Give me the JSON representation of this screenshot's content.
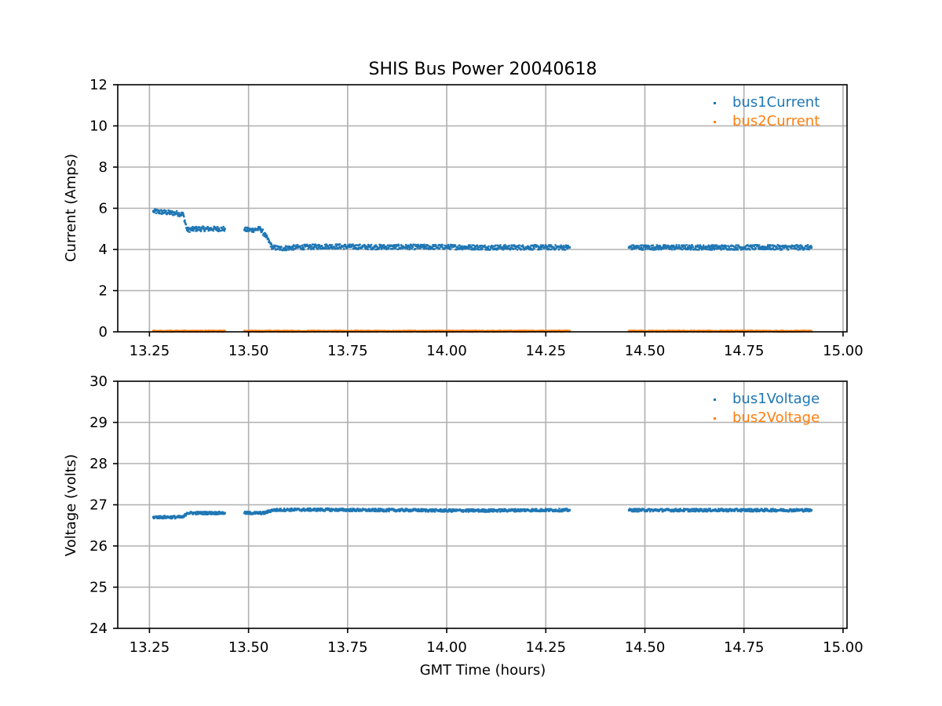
{
  "chart_data": [
    {
      "type": "scatter",
      "title": "SHIS Bus Power 20040618",
      "xlabel": "",
      "ylabel": "Current (Amps)",
      "xlim": [
        13.17,
        15.01
      ],
      "ylim": [
        0,
        12
      ],
      "x_ticks": [
        "13.25",
        "13.50",
        "13.75",
        "14.00",
        "14.25",
        "14.50",
        "14.75",
        "15.00"
      ],
      "y_ticks": [
        "0",
        "2",
        "4",
        "6",
        "8",
        "10",
        "12"
      ],
      "grid": true,
      "legend_position": "top-right",
      "gap_hours": [
        13.44,
        13.49,
        14.31,
        14.46
      ],
      "series": [
        {
          "name": "bus1Current",
          "color": "#1f77b4",
          "points": [
            [
              13.26,
              5.85
            ],
            [
              13.29,
              5.8
            ],
            [
              13.32,
              5.75
            ],
            [
              13.335,
              5.7
            ],
            [
              13.345,
              4.95
            ],
            [
              13.37,
              5.0
            ],
            [
              13.4,
              5.0
            ],
            [
              13.44,
              5.0
            ],
            [
              13.49,
              4.95
            ],
            [
              13.51,
              4.95
            ],
            [
              13.53,
              5.0
            ],
            [
              13.545,
              4.6
            ],
            [
              13.56,
              4.1
            ],
            [
              13.58,
              4.05
            ],
            [
              13.62,
              4.1
            ],
            [
              13.7,
              4.15
            ],
            [
              13.8,
              4.12
            ],
            [
              13.9,
              4.12
            ],
            [
              14.0,
              4.12
            ],
            [
              14.1,
              4.1
            ],
            [
              14.2,
              4.1
            ],
            [
              14.31,
              4.1
            ],
            [
              14.46,
              4.1
            ],
            [
              14.55,
              4.1
            ],
            [
              14.65,
              4.1
            ],
            [
              14.75,
              4.1
            ],
            [
              14.85,
              4.1
            ],
            [
              14.92,
              4.1
            ]
          ]
        },
        {
          "name": "bus2Current",
          "color": "#ff7f0e",
          "points": [
            [
              13.26,
              0.03
            ],
            [
              13.35,
              0.03
            ],
            [
              13.44,
              0.03
            ],
            [
              13.49,
              0.03
            ],
            [
              13.7,
              0.03
            ],
            [
              14.0,
              0.03
            ],
            [
              14.31,
              0.03
            ],
            [
              14.46,
              0.03
            ],
            [
              14.7,
              0.03
            ],
            [
              14.92,
              0.03
            ]
          ]
        }
      ]
    },
    {
      "type": "scatter",
      "title": "",
      "xlabel": "GMT Time (hours)",
      "ylabel": "Voltage (volts)",
      "xlim": [
        13.17,
        15.01
      ],
      "ylim": [
        24,
        30
      ],
      "x_ticks": [
        "13.25",
        "13.50",
        "13.75",
        "14.00",
        "14.25",
        "14.50",
        "14.75",
        "15.00"
      ],
      "y_ticks": [
        "24",
        "25",
        "26",
        "27",
        "28",
        "29",
        "30"
      ],
      "grid": true,
      "legend_position": "top-right",
      "gap_hours": [
        13.44,
        13.49,
        14.31,
        14.46
      ],
      "series": [
        {
          "name": "bus1Voltage",
          "color": "#1f77b4",
          "points": [
            [
              13.26,
              26.7
            ],
            [
              13.3,
              26.7
            ],
            [
              13.335,
              26.7
            ],
            [
              13.345,
              26.8
            ],
            [
              13.39,
              26.8
            ],
            [
              13.44,
              26.8
            ],
            [
              13.49,
              26.8
            ],
            [
              13.52,
              26.8
            ],
            [
              13.54,
              26.8
            ],
            [
              13.56,
              26.87
            ],
            [
              13.6,
              26.88
            ],
            [
              13.7,
              26.88
            ],
            [
              13.8,
              26.87
            ],
            [
              13.9,
              26.87
            ],
            [
              14.0,
              26.86
            ],
            [
              14.1,
              26.86
            ],
            [
              14.2,
              26.87
            ],
            [
              14.31,
              26.87
            ],
            [
              14.46,
              26.87
            ],
            [
              14.55,
              26.87
            ],
            [
              14.65,
              26.87
            ],
            [
              14.75,
              26.87
            ],
            [
              14.85,
              26.87
            ],
            [
              14.92,
              26.87
            ]
          ]
        },
        {
          "name": "bus2Voltage",
          "color": "#ff7f0e",
          "points": []
        }
      ]
    }
  ]
}
